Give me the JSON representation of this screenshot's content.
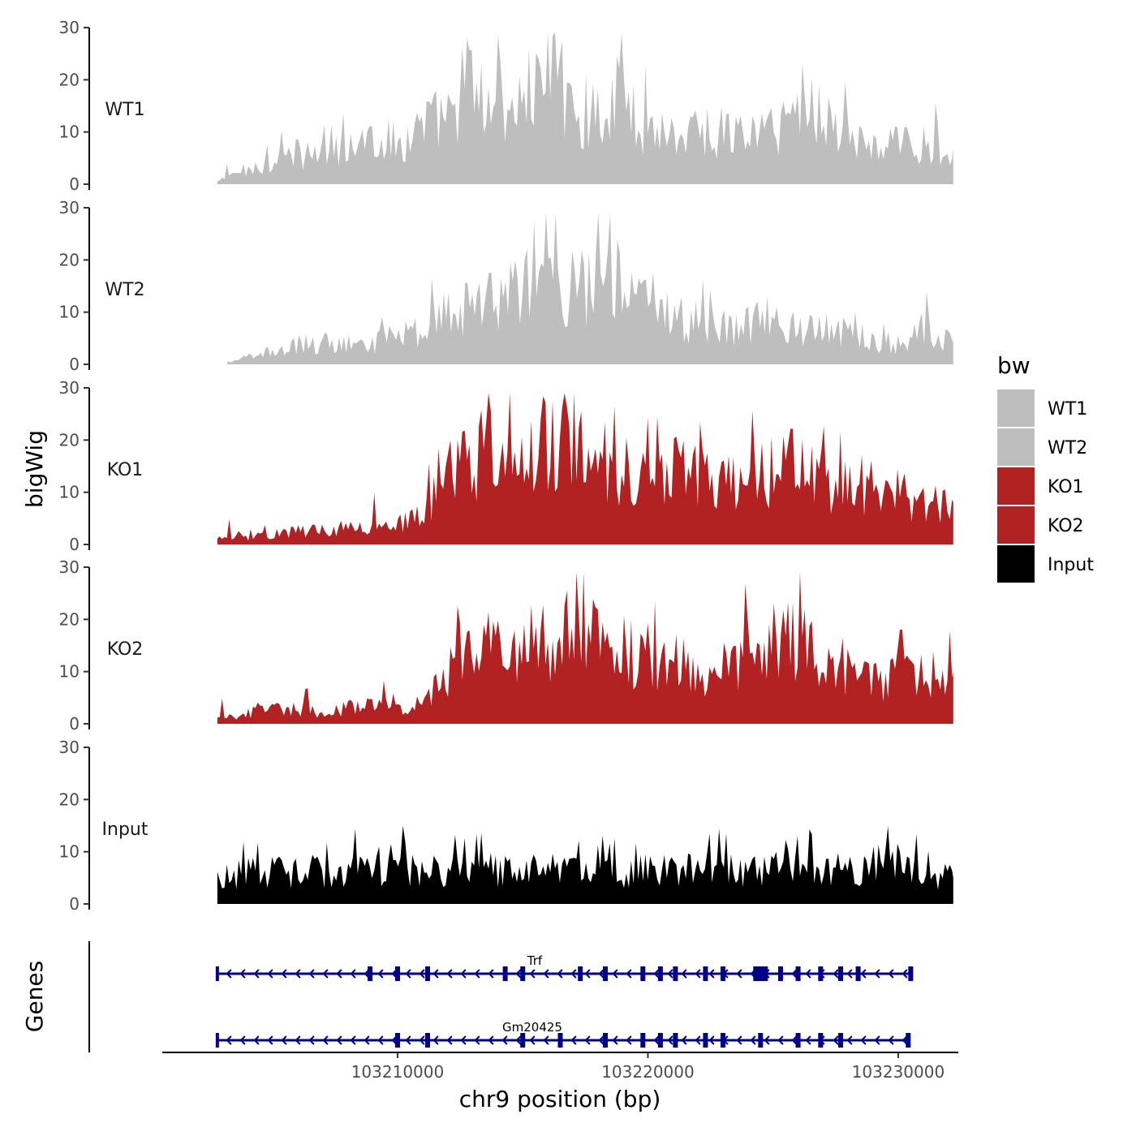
{
  "chart_data": {
    "type": "area",
    "ylabel": "bigWig",
    "xlabel": "chr9 position (bp)",
    "ylim": [
      0,
      30
    ],
    "y_ticks": [
      0,
      10,
      20,
      30
    ],
    "xlim": [
      103200600,
      103232400
    ],
    "x_ticks": [
      103210000,
      103220000,
      103230000
    ],
    "x_tick_labels": [
      "103210000",
      "103220000",
      "103230000"
    ],
    "data_start": 103202800,
    "data_end": 103232200,
    "genes_label": "Genes",
    "legend": {
      "title": "bw",
      "entries": [
        {
          "label": "WT1",
          "color": "#bebebe"
        },
        {
          "label": "WT2",
          "color": "#bebebe"
        },
        {
          "label": "KO1",
          "color": "#b22222"
        },
        {
          "label": "KO2",
          "color": "#b22222"
        },
        {
          "label": "Input",
          "color": "#000000"
        }
      ]
    },
    "series": [
      {
        "name": "WT1",
        "color": "#bebebe",
        "x": [
          103202800,
          103203700,
          103204800,
          103205900,
          103206900,
          103208000,
          103209000,
          103210100,
          103211200,
          103212100,
          103212800,
          103213500,
          103214100,
          103215200,
          103216100,
          103216800,
          103217500,
          103218100,
          103218600,
          103219000,
          103220000,
          103221200,
          103222100,
          103223000,
          103224100,
          103225200,
          103226100,
          103227000,
          103228100,
          103229000,
          103230100,
          103231000,
          103232200
        ],
        "values": [
          0.5,
          2.5,
          4,
          6,
          5.5,
          7,
          9.5,
          8,
          12,
          13,
          21,
          15,
          16,
          17,
          24,
          17,
          14,
          15,
          16,
          18,
          11,
          10,
          11,
          10,
          10,
          11,
          17,
          14,
          9,
          7,
          8,
          8,
          7
        ]
      },
      {
        "name": "WT2",
        "color": "#bebebe",
        "x": [
          103203200,
          103204200,
          103205300,
          103206300,
          103207400,
          103208500,
          103209600,
          103210700,
          103211600,
          103212600,
          103213400,
          103214300,
          103215200,
          103216100,
          103217000,
          103217800,
          103218600,
          103219300,
          103220200,
          103221300,
          103222300,
          103223400,
          103224500,
          103225600,
          103226700,
          103227800,
          103228900,
          103230000,
          103231100,
          103232200
        ],
        "values": [
          0.5,
          1.5,
          3,
          4,
          4.5,
          3.5,
          5,
          6,
          9,
          11,
          12,
          14,
          15,
          17,
          15,
          16,
          17,
          14,
          10,
          9,
          8,
          7,
          9,
          8,
          7,
          6,
          5,
          4,
          7,
          5
        ]
      },
      {
        "name": "KO1",
        "color": "#b22222",
        "x": [
          103202800,
          103203800,
          103204800,
          103205800,
          103206800,
          103207800,
          103208800,
          103209800,
          103210800,
          103211400,
          103212200,
          103213000,
          103213900,
          103214700,
          103215600,
          103216400,
          103217400,
          103218200,
          103219100,
          103220200,
          103221200,
          103222200,
          103223300,
          103224300,
          103225400,
          103226500,
          103227600,
          103228700,
          103229800,
          103230900,
          103232200
        ],
        "values": [
          1,
          1.5,
          2,
          2.5,
          3,
          3.5,
          4,
          4.5,
          5,
          9,
          15,
          18,
          17,
          18,
          19,
          21,
          22,
          17,
          14,
          17,
          15,
          13,
          12,
          14,
          16,
          14,
          12,
          9,
          10,
          8,
          8
        ]
      },
      {
        "name": "KO2",
        "color": "#b22222",
        "x": [
          103202800,
          103203800,
          103204800,
          103205800,
          103206800,
          103207800,
          103208800,
          103209800,
          103210600,
          103211400,
          103212200,
          103213000,
          103213900,
          103214700,
          103215600,
          103216600,
          103217400,
          103218300,
          103219300,
          103220300,
          103221400,
          103222600,
          103223700,
          103224800,
          103225900,
          103227000,
          103228200,
          103229400,
          103230700,
          103232200
        ],
        "values": [
          1,
          2,
          2.5,
          3,
          2.5,
          3,
          3.5,
          4,
          3,
          6,
          12,
          15,
          16,
          16,
          15,
          17,
          18,
          15,
          14,
          13,
          11,
          8,
          14,
          16,
          17,
          14,
          10,
          9,
          10,
          10
        ]
      },
      {
        "name": "Input",
        "color": "#000000",
        "x": [
          103202800,
          103203800,
          103204800,
          103205800,
          103206800,
          103207800,
          103208800,
          103209800,
          103210800,
          103211800,
          103212800,
          103213800,
          103214800,
          103215800,
          103216800,
          103217800,
          103218800,
          103219800,
          103220800,
          103221800,
          103222800,
          103223800,
          103224800,
          103225800,
          103226800,
          103227800,
          103228800,
          103229800,
          103230800,
          103232200
        ],
        "values": [
          5,
          6,
          6.5,
          6,
          6.5,
          7,
          7,
          8,
          6,
          7,
          6,
          7,
          6,
          6.5,
          7,
          6,
          6,
          6.5,
          7,
          6.5,
          7,
          7,
          7,
          7,
          7.5,
          7,
          7,
          9,
          6,
          5
        ]
      }
    ],
    "genes": [
      {
        "name": "Trf",
        "start": 103202800,
        "end": 103230500,
        "strand": "-",
        "exons": [
          103208900,
          103210000,
          103211200,
          103214300,
          103215000,
          103217300,
          103218300,
          103219800,
          103220500,
          103221100,
          103222300,
          103223000,
          103224500,
          103225300,
          103226000,
          103226900,
          103227700,
          103228400,
          103230500
        ]
      },
      {
        "name": "Gm20425",
        "start": 103202800,
        "end": 103230400,
        "strand": "-",
        "exons": [
          103210000,
          103211200,
          103215000,
          103216500,
          103218300,
          103219800,
          103220500,
          103221100,
          103222300,
          103223000,
          103224500,
          103226000,
          103226900,
          103227700,
          103230400
        ]
      }
    ]
  }
}
